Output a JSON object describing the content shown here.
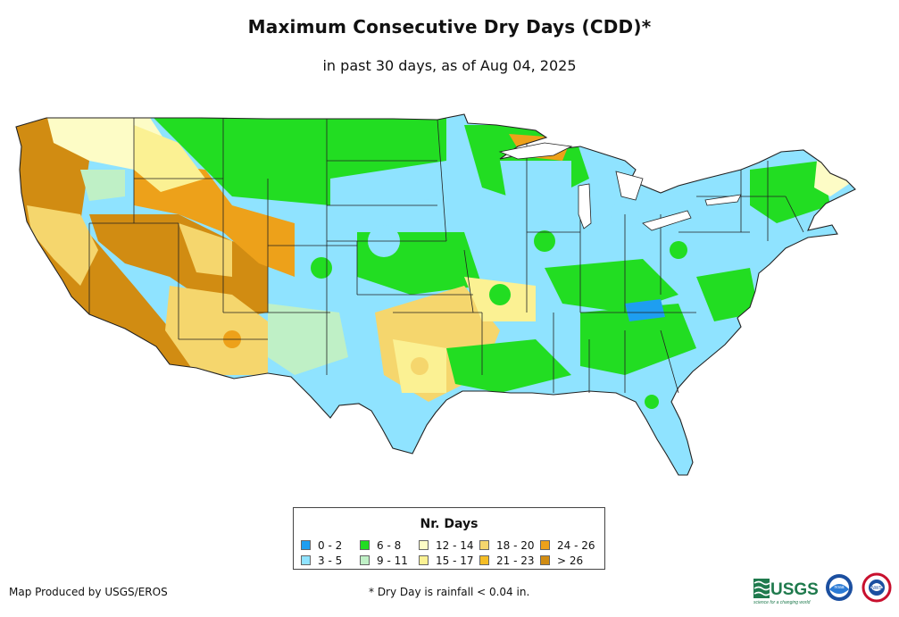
{
  "title": "Maximum Consecutive Dry Days (CDD)*",
  "subtitle": "in past 30 days, as of Aug 04, 2025",
  "legend": {
    "title": "Nr. Days",
    "items": [
      {
        "label": "0 - 2",
        "color": "#1e9ef0"
      },
      {
        "label": "3 - 5",
        "color": "#8fe3ff"
      },
      {
        "label": "6 - 8",
        "color": "#22dd22"
      },
      {
        "label": "9 - 11",
        "color": "#bff0c6"
      },
      {
        "label": "12 - 14",
        "color": "#fdfcc6"
      },
      {
        "label": "15 - 17",
        "color": "#fbf193"
      },
      {
        "label": "18 - 20",
        "color": "#f5d66d"
      },
      {
        "label": "21 - 23",
        "color": "#f4bd25"
      },
      {
        "label": "24 - 26",
        "color": "#eda11a"
      },
      {
        "label": "> 26",
        "color": "#d18c12"
      }
    ]
  },
  "footer": {
    "credit": "Map Produced by USGS/EROS",
    "note": "* Dry Day is rainfall < 0.04 in."
  },
  "logos": {
    "usgs": {
      "text": "USGS",
      "tagline": "science for a changing world"
    },
    "noaa": {
      "text": "noaa"
    },
    "nws": {
      "text": "NWS"
    }
  },
  "colors": {
    "water_blue": "#1e9ef0",
    "light_blue": "#8fe3ff",
    "green": "#22dd22",
    "pale_green": "#bff0c6",
    "tan": "#f5d66d",
    "brown": "#d18c12",
    "orange": "#eda11a",
    "yellow": "#fbf193",
    "pale_yellow": "#fdfcc6",
    "usgs_green": "#1f7a4d",
    "noaa_blue": "#1b4fa0"
  }
}
